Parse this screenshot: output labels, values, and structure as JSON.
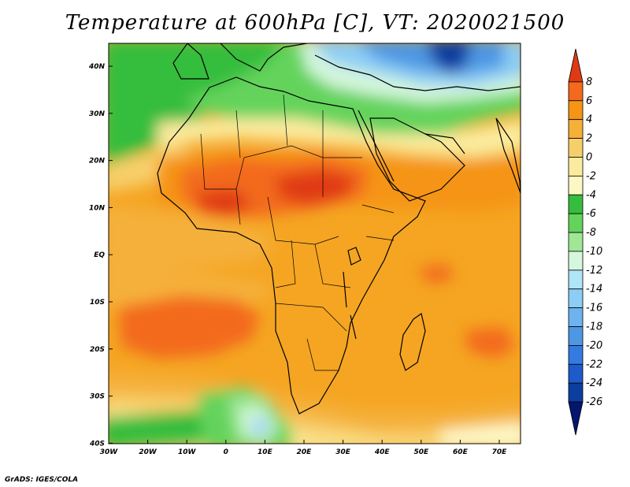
{
  "title": "Temperature at 600hPa [C], VT: 2020021500",
  "credit": "GrADS: IGES/COLA",
  "lon_ticks": [
    "30W",
    "20W",
    "10W",
    "0",
    "10E",
    "20E",
    "30E",
    "40E",
    "50E",
    "60E",
    "70E"
  ],
  "lat_ticks": [
    "40N",
    "30N",
    "20N",
    "10N",
    "EQ",
    "10S",
    "20S",
    "30S",
    "40S"
  ],
  "colorbar": {
    "labels": [
      "8",
      "6",
      "4",
      "2",
      "0",
      "-2",
      "-4",
      "-6",
      "-8",
      "-10",
      "-12",
      "-14",
      "-16",
      "-18",
      "-20",
      "-22",
      "-24",
      "-26"
    ],
    "colors": [
      "#e03a14",
      "#f36a1c",
      "#f59415",
      "#f5b03a",
      "#f7cf6a",
      "#fbeb9e",
      "#fdf7c4",
      "#35bd3e",
      "#63d35c",
      "#9fe795",
      "#d6f7dd",
      "#aee5f7",
      "#8ccdf5",
      "#6db3ef",
      "#4e97e3",
      "#347be0",
      "#1d5bcc",
      "#0c3e9f",
      "#05166e"
    ]
  }
}
